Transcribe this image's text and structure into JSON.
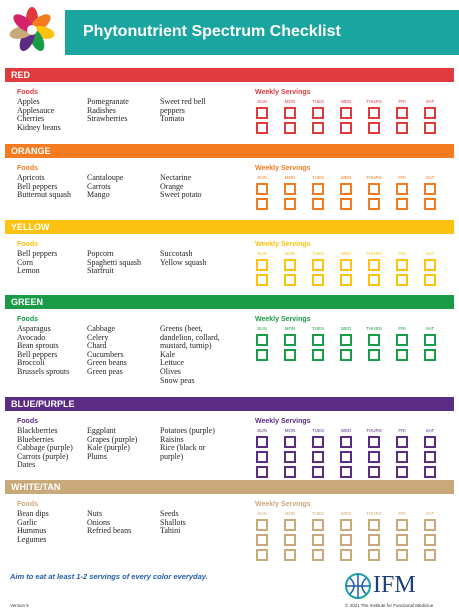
{
  "header": {
    "title": "Phytonutrient Spectrum Checklist"
  },
  "days": [
    "SUN",
    "MON",
    "TUES",
    "WED",
    "THURS",
    "FRI",
    "SAT"
  ],
  "sections": [
    {
      "name": "RED",
      "color": "#e03a3e",
      "foods_label": "Foods",
      "servings_label": "Weekly Servings",
      "columns": [
        [
          "Apples",
          "Applesauce",
          "Cherries",
          "Kidney beans"
        ],
        [
          "Pomegranate",
          "Radishes",
          "Strawberries"
        ],
        [
          "Sweet red bell",
          "peppers",
          "Tomato"
        ]
      ]
    },
    {
      "name": "ORANGE",
      "color": "#f47b20",
      "foods_label": "Foods",
      "servings_label": "Weekly Servings",
      "columns": [
        [
          "Apricots",
          "Bell peppers",
          "Butternut squash"
        ],
        [
          "Cantaloupe",
          "Carrots",
          "Mango"
        ],
        [
          "Nectarine",
          "Orange",
          "Sweet potato"
        ]
      ]
    },
    {
      "name": "YELLOW",
      "color": "#fcc20f",
      "foods_label": "Foods",
      "servings_label": "Weekly Servings",
      "columns": [
        [
          "Bell peppers",
          "Corn",
          "Lemon"
        ],
        [
          "Popcorn",
          "Spaghetti squash",
          "Starfruit"
        ],
        [
          "Succotash",
          "Yellow squash"
        ]
      ]
    },
    {
      "name": "GREEN",
      "color": "#1a9b48",
      "foods_label": "Foods",
      "servings_label": "Weekly Servings",
      "columns": [
        [
          "Asparagus",
          "Avocado",
          "Bean sprouts",
          "Bell peppers",
          "Broccoli",
          "Brussels sprouts"
        ],
        [
          "Cabbage",
          "Celery",
          "Chard",
          "Cucumbers",
          "Green beans",
          "Green peas"
        ],
        [
          "Greens (beet,",
          "dandelion, collard,",
          "mustard, turnip)",
          "Kale",
          "Lettuce",
          "Olives",
          "Snow peas"
        ]
      ]
    },
    {
      "name": "BLUE/PURPLE",
      "color": "#5b2c83",
      "foods_label": "Foods",
      "servings_label": "Weekly Servings",
      "columns": [
        [
          "Blackberries",
          "Blueberries",
          "Cabbage (purple)",
          "Carrots (purple)",
          "Dates"
        ],
        [
          "Eggplant",
          "Grapes (purple)",
          "Kale (purple)",
          "Plums"
        ],
        [
          "Potatoes (purple)",
          "Raisins",
          "Rice (black or",
          "purple)"
        ]
      ]
    },
    {
      "name": "WHITE/TAN",
      "color": "#c9a97a",
      "foods_label": "Foods",
      "servings_label": "Weekly Servings",
      "columns": [
        [
          "Bean dips",
          "Garlic",
          "Hummus",
          "Legumes"
        ],
        [
          "Nuts",
          "Onions",
          "Refried beans"
        ],
        [
          "Seeds",
          "Shallots",
          "Tahini"
        ]
      ]
    }
  ],
  "footer": {
    "tagline": "Aim to eat at least 1-2 servings of every color everyday.",
    "version": "Version 5",
    "copyright": "© 2021 The Institute for Functional Medicine",
    "logo": "IFM"
  }
}
